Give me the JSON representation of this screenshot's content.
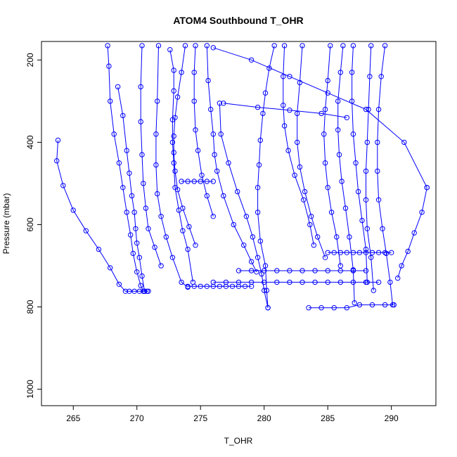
{
  "chart_data": {
    "type": "line",
    "title": "ATOM4 Southbound T_OHR",
    "xlabel": "T_OHR",
    "ylabel": "Pressure (mbar)",
    "xlim": [
      262.5,
      293.5
    ],
    "ylim": [
      1040,
      155
    ],
    "y_inverted": true,
    "x_ticks": [
      265,
      270,
      275,
      280,
      285,
      290
    ],
    "y_ticks": [
      200,
      400,
      600,
      800,
      1000
    ],
    "grid": false,
    "series_color": "#0000ff",
    "marker": "open-circle",
    "series": [
      {
        "x": [
          263.8,
          263.7,
          264.2,
          265.0,
          266.0,
          267.0,
          267.9,
          268.6,
          269.1,
          269.4,
          269.8,
          270.2,
          270.6,
          270.9
        ],
        "y": [
          395,
          445,
          505,
          565,
          615,
          660,
          705,
          745,
          762,
          762,
          762,
          762,
          762,
          762
        ]
      },
      {
        "x": [
          267.7,
          267.8,
          267.9,
          268.2,
          268.6,
          268.9,
          269.2,
          269.5,
          269.7,
          270.0,
          270.3,
          270.5,
          270.6,
          270.8
        ],
        "y": [
          165,
          215,
          300,
          380,
          450,
          510,
          570,
          625,
          670,
          715,
          748,
          762,
          762,
          762
        ]
      },
      {
        "x": [
          268.5,
          268.9,
          269.2,
          269.4,
          269.6,
          269.8,
          269.9,
          270.0,
          270.2,
          270.4,
          270.6
        ],
        "y": [
          265,
          335,
          420,
          475,
          530,
          570,
          610,
          645,
          680,
          725,
          762
        ]
      },
      {
        "x": [
          270.4,
          270.3,
          270.3,
          270.4,
          270.5,
          270.7,
          270.9,
          271.4,
          271.9
        ],
        "y": [
          165,
          265,
          350,
          430,
          500,
          560,
          610,
          655,
          700
        ]
      },
      {
        "x": [
          271.7,
          271.6,
          271.5,
          271.5,
          271.6,
          271.9,
          272.3,
          272.8,
          273.5,
          274.0
        ],
        "y": [
          165,
          300,
          380,
          455,
          525,
          580,
          630,
          680,
          740,
          752
        ]
      },
      {
        "x": [
          272.6,
          272.9,
          272.9,
          272.8,
          272.8,
          272.9,
          273.0,
          273.3,
          273.6,
          274.0,
          274.4
        ],
        "y": [
          175,
          225,
          275,
          345,
          400,
          450,
          510,
          565,
          615,
          660,
          740
        ]
      },
      {
        "x": [
          273.8,
          273.5,
          273.2,
          273.0,
          272.9,
          272.9,
          273.0,
          273.2,
          273.6,
          274.1,
          274.6
        ],
        "y": [
          165,
          230,
          290,
          340,
          385,
          425,
          470,
          515,
          560,
          605,
          650
        ]
      },
      {
        "x": [
          274.6,
          274.5,
          274.5,
          274.6,
          274.8,
          275.1,
          275.5,
          276.0
        ],
        "y": [
          165,
          230,
          300,
          370,
          420,
          480,
          530,
          580
        ]
      },
      {
        "x": [
          275.5,
          275.6,
          275.8,
          276.0,
          276.1,
          276.3,
          276.8,
          277.6,
          278.4,
          279.0,
          279.4
        ],
        "y": [
          165,
          250,
          320,
          380,
          430,
          470,
          530,
          600,
          650,
          690,
          715
        ]
      },
      {
        "x": [
          276.5,
          276.6,
          277.2,
          277.9,
          278.6,
          279.1,
          279.5,
          279.8,
          280.0,
          280.3
        ],
        "y": [
          305,
          380,
          450,
          520,
          580,
          630,
          680,
          720,
          760,
          802
        ]
      },
      {
        "x": [
          280.8,
          280.4,
          280.1,
          279.9,
          279.7,
          279.6,
          279.5,
          279.5,
          279.7,
          280.1,
          280.2,
          280.3
        ],
        "y": [
          165,
          220,
          280,
          330,
          395,
          455,
          510,
          570,
          640,
          700,
          760,
          802
        ]
      },
      {
        "x": [
          281.6,
          281.5,
          281.5,
          281.6,
          281.9,
          282.4,
          283.1,
          283.6,
          283.9
        ],
        "y": [
          165,
          240,
          310,
          360,
          420,
          480,
          540,
          600,
          650
        ]
      },
      {
        "x": [
          283.0,
          282.8,
          282.6,
          282.6,
          282.8,
          283.2,
          283.7,
          284.2,
          284.8
        ],
        "y": [
          165,
          255,
          330,
          400,
          460,
          520,
          580,
          630,
          680
        ]
      },
      {
        "x": [
          285.2,
          285.0,
          284.8,
          284.7,
          284.8,
          285.0,
          285.3,
          285.7,
          286.0
        ],
        "y": [
          165,
          250,
          320,
          380,
          450,
          510,
          570,
          630,
          700
        ]
      },
      {
        "x": [
          286.2,
          286.0,
          285.8,
          285.8,
          285.9,
          286.1,
          286.4,
          286.7,
          287.0,
          287.1
        ],
        "y": [
          165,
          230,
          300,
          370,
          430,
          495,
          560,
          630,
          710,
          790
        ]
      },
      {
        "x": [
          287.0,
          286.9,
          286.9,
          287.0,
          287.2,
          287.4,
          287.7,
          288.0,
          288.1
        ],
        "y": [
          165,
          230,
          300,
          380,
          450,
          520,
          590,
          660,
          740
        ]
      },
      {
        "x": [
          288.4,
          288.3,
          288.2,
          288.1,
          288.0,
          288.0,
          288.1,
          288.4,
          288.6
        ],
        "y": [
          165,
          240,
          320,
          400,
          470,
          540,
          610,
          680,
          760
        ]
      },
      {
        "x": [
          289.5,
          289.2,
          289.0,
          288.9,
          288.9,
          289.0,
          289.3,
          289.6,
          289.9,
          290.1
        ],
        "y": [
          165,
          240,
          320,
          400,
          470,
          540,
          610,
          670,
          740,
          795
        ]
      },
      {
        "x": [
          292.8,
          292.4,
          291.8,
          291.3,
          290.8,
          290.5
        ],
        "y": [
          510,
          570,
          620,
          665,
          700,
          730
        ]
      },
      {
        "x": [
          274.0,
          274.5,
          275.0,
          275.5,
          276.0,
          276.5,
          277.0,
          277.5,
          278.0,
          278.5,
          279.0
        ],
        "y": [
          750,
          750,
          750,
          750,
          750,
          750,
          750,
          750,
          750,
          750,
          750
        ]
      },
      {
        "x": [
          276.0,
          277.0,
          278.0,
          279.0,
          280.0,
          281.0,
          282.0,
          283.0,
          284.0,
          285.0,
          286.0,
          287.0,
          288.0,
          289.0
        ],
        "y": [
          740,
          740,
          740,
          740,
          740,
          740,
          740,
          740,
          740,
          740,
          740,
          740,
          740,
          740
        ]
      },
      {
        "x": [
          278.0,
          279.0,
          280.0,
          281.0,
          282.0,
          283.0,
          284.0,
          285.0,
          286.0,
          287.0,
          288.0
        ],
        "y": [
          712,
          712,
          712,
          712,
          712,
          712,
          712,
          712,
          712,
          712,
          712
        ]
      },
      {
        "x": [
          285.0,
          285.5,
          286.0,
          286.5,
          287.0,
          287.5,
          288.0,
          288.5,
          289.0,
          289.5,
          290.0
        ],
        "y": [
          668,
          668,
          668,
          668,
          668,
          668,
          668,
          668,
          668,
          668,
          668
        ]
      },
      {
        "x": [
          283.5,
          284.5,
          285.5,
          286.5,
          287.5,
          288.5,
          289.5,
          290.2
        ],
        "y": [
          802,
          802,
          802,
          802,
          795,
          795,
          795,
          795
        ]
      },
      {
        "x": [
          273.5,
          274.0,
          274.5,
          275.0,
          275.5,
          276.0
        ],
        "y": [
          495,
          495,
          495,
          495,
          495,
          495
        ]
      },
      {
        "x": [
          276.0,
          279.0,
          282.0,
          285.0,
          288.0,
          291.0,
          292.8
        ],
        "y": [
          170,
          200,
          240,
          280,
          320,
          400,
          510
        ]
      },
      {
        "x": [
          276.8,
          279.5,
          282.0,
          284.5,
          286.5
        ],
        "y": [
          305,
          315,
          322,
          330,
          340
        ]
      }
    ]
  }
}
